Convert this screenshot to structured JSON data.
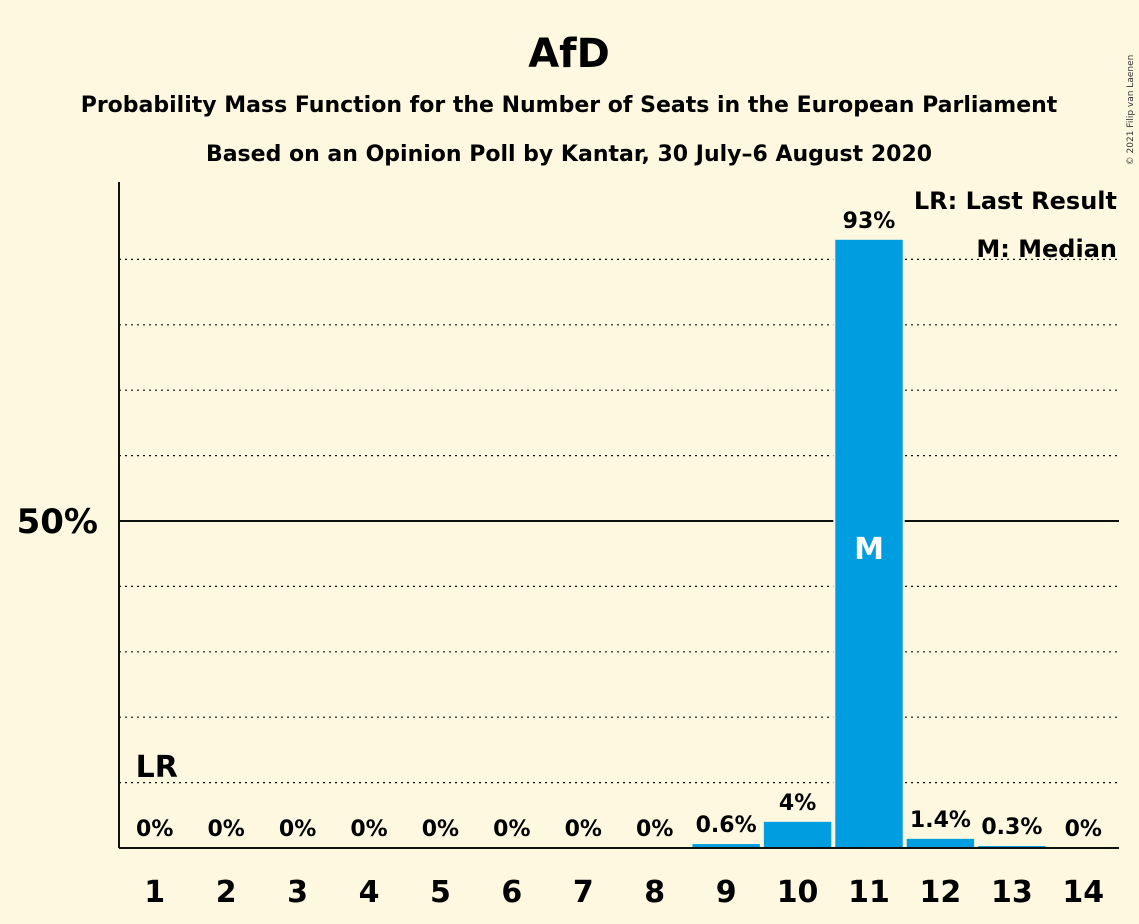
{
  "chart_data": {
    "type": "bar",
    "title": "AfD",
    "subtitle_lines": [
      "Probability Mass Function for the Number of Seats in the European Parliament",
      "Based on an Opinion Poll by Kantar, 30 July–6 August 2020"
    ],
    "categories": [
      "1",
      "2",
      "3",
      "4",
      "5",
      "6",
      "7",
      "8",
      "9",
      "10",
      "11",
      "12",
      "13",
      "14"
    ],
    "values": [
      0,
      0,
      0,
      0,
      0,
      0,
      0,
      0,
      0.6,
      4,
      93,
      1.4,
      0.3,
      0
    ],
    "value_labels": [
      "0%",
      "0%",
      "0%",
      "0%",
      "0%",
      "0%",
      "0%",
      "0%",
      "0.6%",
      "4%",
      "93%",
      "1.4%",
      "0.3%",
      "0%"
    ],
    "ylim": [
      0,
      100
    ],
    "y_ticks": [
      {
        "value": 50,
        "label": "50%"
      }
    ],
    "grid": "dotted, every 10%",
    "last_result": {
      "category": "1",
      "marker": "LR"
    },
    "median": {
      "category": "11",
      "marker": "M"
    },
    "legend": {
      "position": "top-right",
      "entries": [
        "LR: Last Result",
        "M: Median"
      ]
    },
    "copyright": "© 2021 Filip van Laenen",
    "colors": {
      "background": "#fff8e1",
      "bar": "#009de0",
      "text": "#111111"
    }
  }
}
